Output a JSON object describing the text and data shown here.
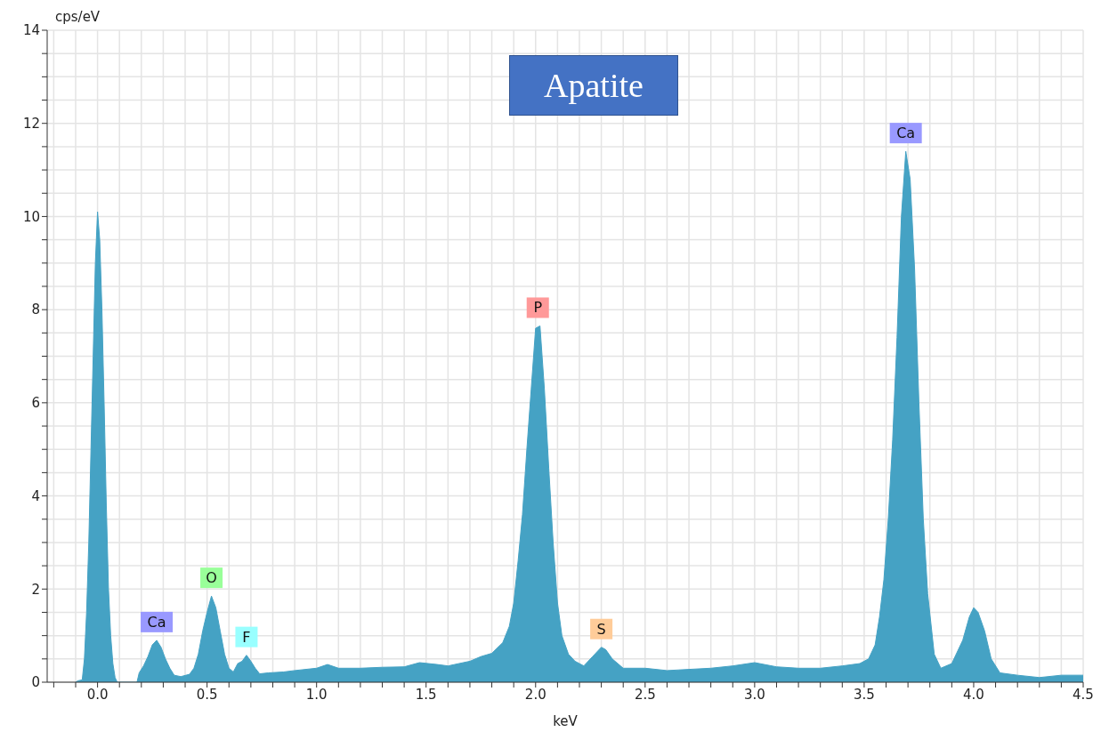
{
  "chart_data": {
    "type": "area",
    "title": "Apatite",
    "xlabel": "keV",
    "ylabel": "cps/eV",
    "color": "#45a2c4",
    "x": [
      -0.1,
      -0.09,
      -0.07,
      -0.06,
      -0.05,
      -0.04,
      -0.03,
      -0.02,
      -0.01,
      0.0,
      0.01,
      0.02,
      0.03,
      0.04,
      0.05,
      0.06,
      0.07,
      0.08,
      0.09,
      0.18,
      0.19,
      0.21,
      0.23,
      0.25,
      0.27,
      0.29,
      0.31,
      0.33,
      0.35,
      0.38,
      0.42,
      0.44,
      0.46,
      0.48,
      0.5,
      0.52,
      0.54,
      0.56,
      0.58,
      0.6,
      0.62,
      0.64,
      0.66,
      0.68,
      0.7,
      0.72,
      0.74,
      0.78,
      0.85,
      0.9,
      1.0,
      1.05,
      1.1,
      1.2,
      1.3,
      1.4,
      1.47,
      1.55,
      1.6,
      1.7,
      1.75,
      1.8,
      1.85,
      1.88,
      1.9,
      1.92,
      1.94,
      1.96,
      1.98,
      2.0,
      2.02,
      2.04,
      2.06,
      2.08,
      2.1,
      2.12,
      2.15,
      2.18,
      2.22,
      2.26,
      2.3,
      2.32,
      2.35,
      2.4,
      2.5,
      2.6,
      2.8,
      2.9,
      3.0,
      3.1,
      3.2,
      3.3,
      3.4,
      3.48,
      3.52,
      3.55,
      3.57,
      3.59,
      3.61,
      3.63,
      3.65,
      3.67,
      3.69,
      3.71,
      3.73,
      3.75,
      3.77,
      3.79,
      3.82,
      3.85,
      3.9,
      3.95,
      3.98,
      4.0,
      4.02,
      4.05,
      4.08,
      4.12,
      4.2,
      4.3,
      4.4,
      4.5
    ],
    "values": [
      0,
      0.03,
      0.05,
      0.5,
      1.5,
      3.0,
      5.0,
      7.0,
      9.0,
      10.1,
      9.5,
      8.0,
      6.0,
      3.8,
      2.0,
      1.0,
      0.4,
      0.1,
      0,
      0,
      0.2,
      0.35,
      0.55,
      0.8,
      0.9,
      0.75,
      0.5,
      0.3,
      0.15,
      0.12,
      0.17,
      0.3,
      0.6,
      1.1,
      1.5,
      1.85,
      1.6,
      1.1,
      0.6,
      0.3,
      0.22,
      0.4,
      0.45,
      0.58,
      0.45,
      0.3,
      0.18,
      0.2,
      0.22,
      0.25,
      0.3,
      0.38,
      0.3,
      0.3,
      0.32,
      0.33,
      0.42,
      0.38,
      0.35,
      0.45,
      0.55,
      0.62,
      0.85,
      1.2,
      1.7,
      2.6,
      3.6,
      5.0,
      6.3,
      7.6,
      7.65,
      6.3,
      4.6,
      3.0,
      1.7,
      1.0,
      0.6,
      0.45,
      0.35,
      0.55,
      0.75,
      0.7,
      0.5,
      0.3,
      0.3,
      0.25,
      0.3,
      0.35,
      0.42,
      0.33,
      0.3,
      0.3,
      0.35,
      0.4,
      0.5,
      0.8,
      1.4,
      2.2,
      3.5,
      5.2,
      7.4,
      10.0,
      11.4,
      10.8,
      8.9,
      6.0,
      3.5,
      1.9,
      0.6,
      0.3,
      0.4,
      0.9,
      1.4,
      1.6,
      1.5,
      1.1,
      0.5,
      0.2,
      0.15,
      0.1,
      0.15,
      0.15
    ],
    "xlim": [
      -0.23,
      4.5
    ],
    "xticks": [
      {
        "value": -0.2,
        "label": null
      },
      {
        "value": -0.1,
        "label": null
      },
      {
        "value": 0,
        "label": "0.0"
      },
      {
        "value": 0.1,
        "label": null
      },
      {
        "value": 0.2,
        "label": null
      },
      {
        "value": 0.3,
        "label": null
      },
      {
        "value": 0.4,
        "label": null
      },
      {
        "value": 0.5,
        "label": "0.5"
      },
      {
        "value": 0.6,
        "label": null
      },
      {
        "value": 0.7,
        "label": null
      },
      {
        "value": 0.8,
        "label": null
      },
      {
        "value": 0.9,
        "label": null
      },
      {
        "value": 1,
        "label": "1.0"
      },
      {
        "value": 1.1,
        "label": null
      },
      {
        "value": 1.2,
        "label": null
      },
      {
        "value": 1.3,
        "label": null
      },
      {
        "value": 1.4,
        "label": null
      },
      {
        "value": 1.5,
        "label": "1.5"
      },
      {
        "value": 1.6,
        "label": null
      },
      {
        "value": 1.7,
        "label": null
      },
      {
        "value": 1.8,
        "label": null
      },
      {
        "value": 1.9,
        "label": null
      },
      {
        "value": 2,
        "label": "2.0"
      },
      {
        "value": 2.1,
        "label": null
      },
      {
        "value": 2.2,
        "label": null
      },
      {
        "value": 2.3,
        "label": null
      },
      {
        "value": 2.4,
        "label": null
      },
      {
        "value": 2.5,
        "label": "2.5"
      },
      {
        "value": 2.6,
        "label": null
      },
      {
        "value": 2.7,
        "label": null
      },
      {
        "value": 2.8,
        "label": null
      },
      {
        "value": 2.9,
        "label": null
      },
      {
        "value": 3,
        "label": "3.0"
      },
      {
        "value": 3.1,
        "label": null
      },
      {
        "value": 3.2,
        "label": null
      },
      {
        "value": 3.3,
        "label": null
      },
      {
        "value": 3.4,
        "label": null
      },
      {
        "value": 3.5,
        "label": "3.5"
      },
      {
        "value": 3.6,
        "label": null
      },
      {
        "value": 3.7,
        "label": null
      },
      {
        "value": 3.8,
        "label": null
      },
      {
        "value": 3.9,
        "label": null
      },
      {
        "value": 4,
        "label": "4.0"
      },
      {
        "value": 4.1,
        "label": null
      },
      {
        "value": 4.2,
        "label": null
      },
      {
        "value": 4.3,
        "label": null
      },
      {
        "value": 4.4,
        "label": null
      },
      {
        "value": 4.5,
        "label": "4.5"
      }
    ],
    "ylim": [
      0,
      14
    ],
    "yticks": [
      0,
      {
        "value": 0.5,
        "label": null
      },
      {
        "value": 1,
        "label": null
      },
      {
        "value": 1.5,
        "label": null
      },
      2,
      {
        "value": 2.5,
        "label": null
      },
      {
        "value": 3,
        "label": null
      },
      {
        "value": 3.5,
        "label": null
      },
      4,
      {
        "value": 4.5,
        "label": null
      },
      {
        "value": 5,
        "label": null
      },
      {
        "value": 5.5,
        "label": null
      },
      6,
      {
        "value": 6.5,
        "label": null
      },
      {
        "value": 7,
        "label": null
      },
      {
        "value": 7.5,
        "label": null
      },
      8,
      {
        "value": 8.5,
        "label": null
      },
      {
        "value": 9,
        "label": null
      },
      {
        "value": 9.5,
        "label": null
      },
      10,
      {
        "value": 10.5,
        "label": null
      },
      {
        "value": 11,
        "label": null
      },
      {
        "value": 11.5,
        "label": null
      },
      12,
      {
        "value": 12.5,
        "label": null
      },
      {
        "value": 13,
        "label": null
      },
      {
        "value": 13.5,
        "label": null
      },
      14
    ],
    "grid": true,
    "annotations": [
      {
        "text": "Ca",
        "x": 0.27,
        "y": 0.9
      },
      {
        "text": "O",
        "x": 0.52,
        "y": 1.85
      },
      {
        "text": "F",
        "x": 0.68,
        "y": 0.58
      },
      {
        "text": "P",
        "x": 2.01,
        "y": 7.65
      },
      {
        "text": "S",
        "x": 2.3,
        "y": 0.75
      },
      {
        "text": "Ca",
        "x": 3.69,
        "y": 11.4
      }
    ]
  }
}
